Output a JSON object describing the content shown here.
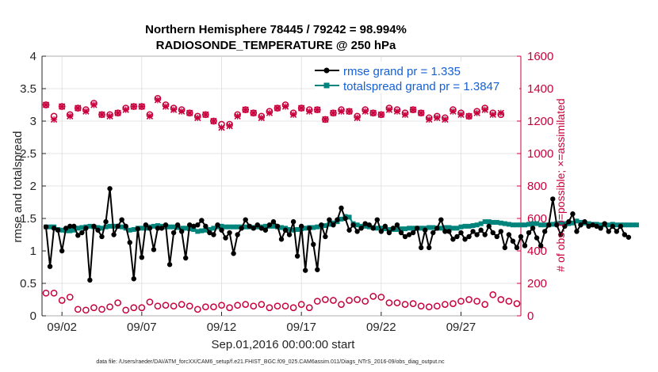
{
  "chart_data": {
    "type": "line",
    "title_line1": "Northern Hemisphere 78445 / 79242 = 98.994%",
    "title_line2": "RADIOSONDE_TEMPERATURE @ 250 hPa",
    "ylabel_left": "rmse and totalspread",
    "ylabel_right": "# of obs: o=possible; ×=assimilated",
    "xlabel": "Sep.01,2016 00:00:00 start",
    "footer": "data file: /Users/raeder/DAI/ATM_forcXX/CAM6_setup/f.e21.FHIST_BGC.f09_025.CAM6assim.011/Diags_NTrS_2016-09/obs_diag_output.nc",
    "x_range": [
      0.75,
      30.75
    ],
    "ylim_left": [
      0,
      4
    ],
    "ylim_right": [
      0,
      1600
    ],
    "yticks_left": [
      "0",
      "0.5",
      "1",
      "1.5",
      "2",
      "2.5",
      "3",
      "3.5",
      "4"
    ],
    "yticks_right": [
      "0",
      "200",
      "400",
      "600",
      "800",
      "1000",
      "1200",
      "1400",
      "1600"
    ],
    "xticks": [
      {
        "day": 2,
        "label": "09/02"
      },
      {
        "day": 7,
        "label": "09/07"
      },
      {
        "day": 12,
        "label": "09/12"
      },
      {
        "day": 17,
        "label": "09/17"
      },
      {
        "day": 22,
        "label": "09/22"
      },
      {
        "day": 27,
        "label": "09/27"
      }
    ],
    "x_start_day": 1.0,
    "x_step_days": 0.25,
    "series": [
      {
        "name": "rmse grand pr = 1.335",
        "axis": "left",
        "color": "#000000",
        "marker": "circle",
        "values": [
          1.37,
          0.76,
          1.35,
          1.32,
          1.0,
          1.35,
          1.38,
          1.38,
          1.24,
          1.28,
          1.35,
          0.55,
          1.38,
          1.32,
          1.22,
          1.45,
          1.96,
          1.25,
          1.38,
          1.48,
          1.38,
          1.13,
          0.57,
          1.34,
          0.9,
          1.4,
          1.35,
          1.02,
          1.35,
          1.35,
          1.4,
          0.79,
          1.28,
          1.4,
          1.3,
          0.89,
          1.4,
          1.38,
          1.4,
          1.47,
          1.38,
          1.28,
          1.25,
          1.4,
          1.32,
          1.2,
          1.28,
          0.96,
          1.25,
          1.35,
          1.48,
          1.38,
          1.35,
          1.4,
          1.35,
          1.32,
          1.4,
          1.45,
          1.38,
          1.18,
          1.32,
          1.25,
          1.45,
          0.92,
          1.38,
          0.7,
          1.35,
          1.1,
          0.71,
          1.4,
          1.22,
          1.48,
          1.4,
          1.48,
          1.66,
          1.5,
          1.32,
          1.4,
          1.3,
          1.35,
          1.42,
          1.4,
          1.35,
          1.48,
          1.3,
          1.38,
          1.28,
          1.35,
          1.4,
          1.28,
          1.22,
          1.25,
          1.28,
          1.35,
          1.05,
          1.32,
          1.05,
          1.28,
          1.35,
          1.48,
          1.3,
          1.3,
          1.18,
          1.22,
          1.28,
          1.18,
          1.22,
          1.3,
          1.25,
          1.32,
          1.25,
          1.38,
          1.28,
          1.22,
          1.3,
          1.05,
          1.25,
          1.15,
          1.05,
          1.22,
          1.08,
          1.28,
          1.35,
          1.2,
          1.08,
          1.3,
          1.4,
          1.8,
          1.4,
          1.25,
          1.38,
          1.45,
          1.57,
          1.3,
          1.4,
          1.45,
          1.38,
          1.4,
          1.38,
          1.35,
          1.42,
          1.3,
          1.38,
          1.3,
          1.38,
          1.25,
          1.21
        ]
      },
      {
        "name": "totalspread grand pr = 1.3847",
        "axis": "left",
        "color": "#00847c",
        "marker": "square",
        "values": [
          1.37,
          1.37,
          1.37,
          1.33,
          1.32,
          1.31,
          1.31,
          1.32,
          1.35,
          1.36,
          1.37,
          1.38,
          1.37,
          1.36,
          1.35,
          1.37,
          1.38,
          1.38,
          1.38,
          1.37,
          1.35,
          1.32,
          1.33,
          1.35,
          1.35,
          1.35,
          1.37,
          1.38,
          1.39,
          1.38,
          1.37,
          1.37,
          1.37,
          1.36,
          1.35,
          1.35,
          1.34,
          1.33,
          1.3,
          1.31,
          1.32,
          1.33,
          1.35,
          1.37,
          1.38,
          1.37,
          1.37,
          1.37,
          1.37,
          1.37,
          1.37,
          1.37,
          1.36,
          1.37,
          1.37,
          1.38,
          1.38,
          1.38,
          1.37,
          1.36,
          1.35,
          1.33,
          1.32,
          1.33,
          1.34,
          1.35,
          1.36,
          1.36,
          1.37,
          1.38,
          1.39,
          1.41,
          1.43,
          1.45,
          1.49,
          1.53,
          1.52,
          1.42,
          1.4,
          1.38,
          1.38,
          1.37,
          1.36,
          1.35,
          1.35,
          1.34,
          1.33,
          1.33,
          1.33,
          1.34,
          1.34,
          1.35,
          1.35,
          1.35,
          1.35,
          1.35,
          1.36,
          1.36,
          1.35,
          1.35,
          1.36,
          1.36,
          1.35,
          1.35,
          1.37,
          1.38,
          1.38,
          1.39,
          1.4,
          1.42,
          1.45,
          1.45,
          1.44,
          1.44,
          1.43,
          1.42,
          1.41,
          1.4,
          1.4,
          1.4,
          1.4,
          1.41,
          1.42,
          1.42,
          1.4,
          1.4,
          1.4,
          1.41,
          1.42,
          1.43,
          1.42,
          1.42,
          1.43,
          1.46,
          1.44,
          1.43,
          1.42,
          1.41,
          1.41,
          1.4,
          1.4,
          1.4,
          1.41,
          1.4,
          1.4,
          1.4,
          1.4,
          1.4,
          1.4
        ]
      }
    ],
    "obs_series": [
      {
        "name": "possible",
        "axis": "right",
        "color": "#c8003c",
        "marker": "o",
        "x_start_day": 1.0,
        "x_step_days": 0.5,
        "values": [
          1300,
          1230,
          1290,
          1240,
          1280,
          1270,
          1310,
          1240,
          1240,
          1250,
          1280,
          1290,
          1290,
          1240,
          1340,
          1300,
          1280,
          1270,
          1250,
          1230,
          1240,
          1200,
          1180,
          1180,
          1240,
          1270,
          1250,
          1230,
          1260,
          1280,
          1300,
          1250,
          1280,
          1270,
          1270,
          1210,
          1250,
          1270,
          1260,
          1230,
          1270,
          1250,
          1240,
          1280,
          1270,
          1250,
          1270,
          1250,
          1220,
          1230,
          1220,
          1270,
          1250,
          1230,
          1260,
          1280,
          1250,
          1240
        ]
      },
      {
        "name": "assimilated",
        "axis": "right",
        "color": "#c8003c",
        "marker": "x",
        "x_start_day": 1.0,
        "x_step_days": 0.5,
        "values": [
          1300,
          1210,
          1290,
          1230,
          1280,
          1260,
          1300,
          1240,
          1230,
          1250,
          1270,
          1290,
          1290,
          1230,
          1330,
          1290,
          1270,
          1260,
          1250,
          1220,
          1240,
          1200,
          1160,
          1170,
          1230,
          1270,
          1250,
          1220,
          1250,
          1280,
          1290,
          1240,
          1280,
          1260,
          1270,
          1210,
          1250,
          1260,
          1260,
          1220,
          1260,
          1250,
          1240,
          1270,
          1260,
          1240,
          1270,
          1250,
          1210,
          1220,
          1210,
          1260,
          1240,
          1230,
          1250,
          1270,
          1240,
          1250
        ]
      },
      {
        "name": "possible_low",
        "axis": "right",
        "color": "#c8003c",
        "marker": "o",
        "x_start_day": 1.0,
        "x_step_days": 0.5,
        "values": [
          140,
          140,
          95,
          115,
          40,
          35,
          50,
          40,
          55,
          80,
          35,
          50,
          50,
          85,
          60,
          65,
          60,
          70,
          60,
          40,
          55,
          55,
          65,
          50,
          65,
          70,
          60,
          70,
          50,
          60,
          60,
          50,
          70,
          50,
          90,
          100,
          95,
          70,
          95,
          100,
          90,
          120,
          115,
          80,
          80,
          70,
          75,
          60,
          55,
          60,
          70,
          75,
          90,
          100,
          90,
          70,
          130,
          100,
          90,
          75,
          70,
          0
        ]
      }
    ],
    "legend": {
      "rmse": "rmse grand pr = 1.335",
      "spread": "totalspread grand pr = 1.3847"
    }
  }
}
